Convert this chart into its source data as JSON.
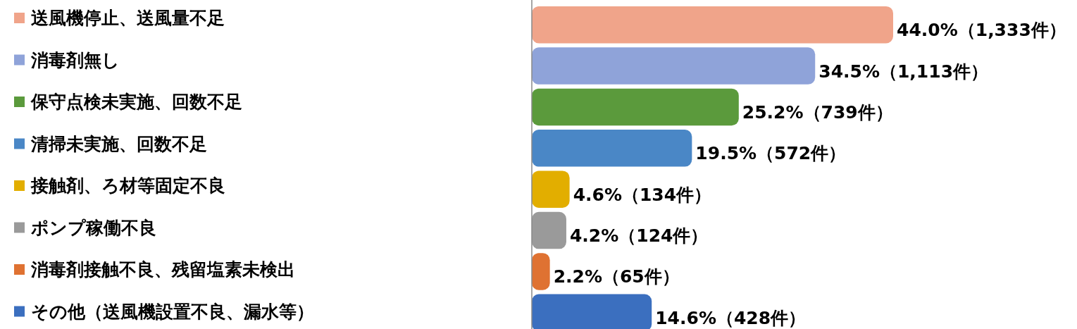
{
  "chart_data": {
    "type": "bar",
    "orientation": "horizontal",
    "categories": [
      "送風機停止、送風量不足",
      "消毒剤無し",
      "保守点検未実施、回数不足",
      "清掃未実施、回数不足",
      "接触剤、ろ材等固定不良",
      "ポンプ稼働不良",
      "消毒剤接触不良、残留塩素未検出",
      "その他（送風機設置不良、漏水等）"
    ],
    "values": [
      44.0,
      34.5,
      25.2,
      19.5,
      4.6,
      4.2,
      2.2,
      14.6
    ],
    "colors": [
      "#f0a48a",
      "#8fa3d9",
      "#5b9a3c",
      "#4a87c6",
      "#e2ae00",
      "#9a9a9a",
      "#df7232",
      "#3b6fbf"
    ],
    "value_labels": [
      "44.0%（1,333件）",
      "34.5%（1,113件）",
      "25.2%（739件）",
      "19.5%（572件）",
      "4.6%（134件）",
      "4.2%（124件）",
      "2.2%（65件）",
      "14.6%（428件）"
    ]
  }
}
